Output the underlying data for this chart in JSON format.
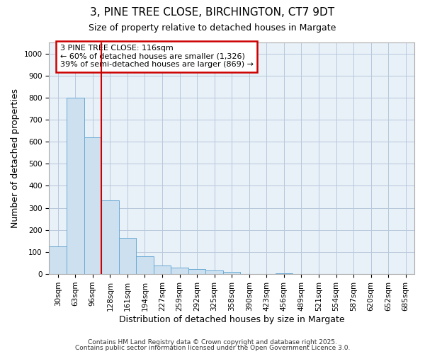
{
  "title1": "3, PINE TREE CLOSE, BIRCHINGTON, CT7 9DT",
  "title2": "Size of property relative to detached houses in Margate",
  "xlabel": "Distribution of detached houses by size in Margate",
  "ylabel": "Number of detached properties",
  "categories": [
    "30sqm",
    "63sqm",
    "96sqm",
    "128sqm",
    "161sqm",
    "194sqm",
    "227sqm",
    "259sqm",
    "292sqm",
    "325sqm",
    "358sqm",
    "390sqm",
    "423sqm",
    "456sqm",
    "489sqm",
    "521sqm",
    "554sqm",
    "587sqm",
    "620sqm",
    "652sqm",
    "685sqm"
  ],
  "values": [
    125,
    800,
    620,
    335,
    165,
    80,
    38,
    28,
    22,
    15,
    10,
    0,
    0,
    5,
    0,
    0,
    0,
    0,
    0,
    0,
    0
  ],
  "bar_color": "#cce0f0",
  "bar_edge_color": "#6aaad4",
  "red_line_x": 2.5,
  "annotation_text": "3 PINE TREE CLOSE: 116sqm\n← 60% of detached houses are smaller (1,326)\n39% of semi-detached houses are larger (869) →",
  "annotation_box_facecolor": "#ffffff",
  "annotation_box_edgecolor": "#cc0000",
  "ylim": [
    0,
    1050
  ],
  "yticks": [
    0,
    100,
    200,
    300,
    400,
    500,
    600,
    700,
    800,
    900,
    1000
  ],
  "plot_bg_color": "#e8f0f8",
  "fig_bg_color": "#ffffff",
  "grid_color": "#b8c8dc",
  "footer1": "Contains HM Land Registry data © Crown copyright and database right 2025.",
  "footer2": "Contains public sector information licensed under the Open Government Licence 3.0.",
  "title1_fontsize": 11,
  "title2_fontsize": 9,
  "tick_fontsize": 7.5,
  "axis_label_fontsize": 9,
  "annotation_fontsize": 8,
  "footer_fontsize": 6.5
}
